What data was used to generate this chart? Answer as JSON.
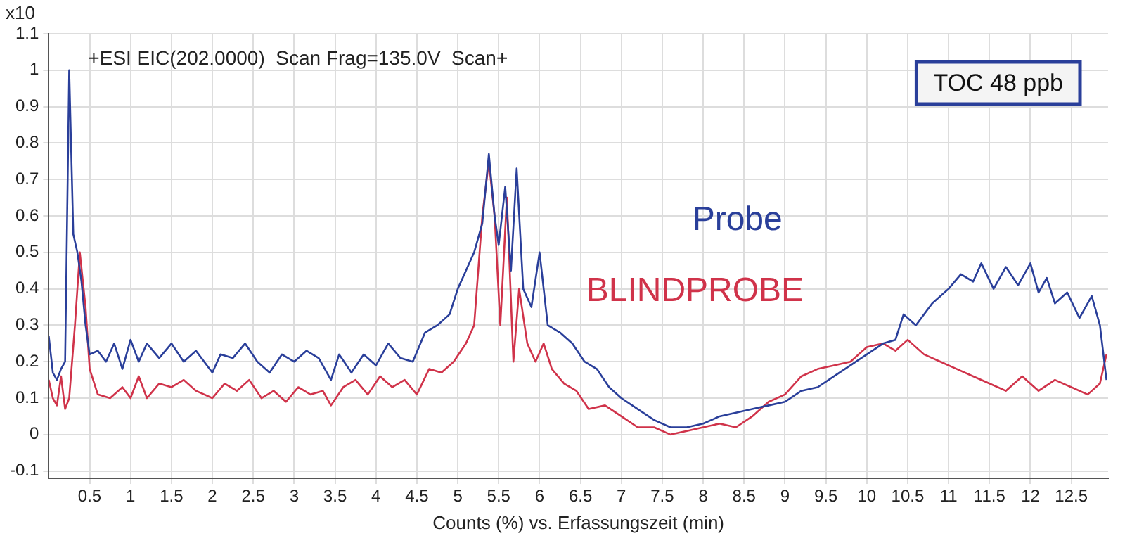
{
  "chart_data": {
    "type": "line",
    "xlabel": "Counts (%) vs. Erfassungszeit (min)",
    "ylabel": "x10",
    "annotations": [
      "+ESI EIC(202.0000)  Scan Frag=135.0V  Scan+",
      "TOC 48 ppb"
    ],
    "xlim": [
      0,
      12.95
    ],
    "ylim": [
      -0.12,
      1.1
    ],
    "xticks": [
      0.5,
      1,
      1.5,
      2,
      2.5,
      3,
      3.5,
      4,
      4.5,
      5,
      5.5,
      6,
      6.5,
      7,
      7.5,
      8,
      8.5,
      9,
      9.5,
      10,
      10.5,
      11,
      11.5,
      12,
      12.5
    ],
    "yticks": [
      -0.1,
      0,
      0.1,
      0.2,
      0.3,
      0.4,
      0.5,
      0.6,
      0.7,
      0.8,
      0.9,
      1,
      1.1
    ],
    "grid": true,
    "legend": false,
    "marker": "none",
    "line_style": "solid",
    "series": [
      {
        "name": "Probe",
        "color": "#2a3f9a",
        "x": [
          0,
          0.05,
          0.1,
          0.15,
          0.2,
          0.25,
          0.3,
          0.35,
          0.4,
          0.45,
          0.5,
          0.6,
          0.7,
          0.8,
          0.9,
          1.0,
          1.1,
          1.2,
          1.35,
          1.5,
          1.65,
          1.8,
          2.0,
          2.1,
          2.25,
          2.4,
          2.55,
          2.7,
          2.85,
          3.0,
          3.15,
          3.3,
          3.45,
          3.55,
          3.7,
          3.85,
          4.0,
          4.15,
          4.3,
          4.45,
          4.6,
          4.75,
          4.9,
          5.0,
          5.1,
          5.2,
          5.3,
          5.38,
          5.45,
          5.5,
          5.58,
          5.65,
          5.72,
          5.8,
          5.9,
          6.0,
          6.1,
          6.25,
          6.4,
          6.55,
          6.7,
          6.85,
          7.0,
          7.2,
          7.4,
          7.6,
          7.8,
          8.0,
          8.2,
          8.4,
          8.6,
          8.8,
          9.0,
          9.2,
          9.4,
          9.6,
          9.8,
          10.0,
          10.2,
          10.35,
          10.45,
          10.6,
          10.8,
          11.0,
          11.15,
          11.3,
          11.4,
          11.55,
          11.7,
          11.85,
          12.0,
          12.1,
          12.2,
          12.3,
          12.45,
          12.6,
          12.75,
          12.85,
          12.93
        ],
        "values": [
          0.27,
          0.17,
          0.15,
          0.18,
          0.2,
          1.0,
          0.55,
          0.5,
          0.42,
          0.3,
          0.22,
          0.23,
          0.2,
          0.25,
          0.18,
          0.26,
          0.2,
          0.25,
          0.21,
          0.25,
          0.2,
          0.23,
          0.17,
          0.22,
          0.21,
          0.25,
          0.2,
          0.17,
          0.22,
          0.2,
          0.23,
          0.21,
          0.15,
          0.22,
          0.17,
          0.22,
          0.19,
          0.25,
          0.21,
          0.2,
          0.28,
          0.3,
          0.33,
          0.4,
          0.45,
          0.5,
          0.58,
          0.77,
          0.6,
          0.52,
          0.68,
          0.45,
          0.73,
          0.4,
          0.35,
          0.5,
          0.3,
          0.28,
          0.25,
          0.2,
          0.18,
          0.13,
          0.1,
          0.07,
          0.04,
          0.02,
          0.02,
          0.03,
          0.05,
          0.06,
          0.07,
          0.08,
          0.09,
          0.12,
          0.13,
          0.16,
          0.19,
          0.22,
          0.25,
          0.26,
          0.33,
          0.3,
          0.36,
          0.4,
          0.44,
          0.42,
          0.47,
          0.4,
          0.46,
          0.41,
          0.47,
          0.39,
          0.43,
          0.36,
          0.39,
          0.32,
          0.38,
          0.3,
          0.15
        ]
      },
      {
        "name": "BLINDPROBE",
        "color": "#d0334a",
        "x": [
          0,
          0.05,
          0.1,
          0.15,
          0.2,
          0.25,
          0.32,
          0.38,
          0.45,
          0.5,
          0.6,
          0.75,
          0.9,
          1.0,
          1.1,
          1.2,
          1.35,
          1.5,
          1.65,
          1.8,
          2.0,
          2.15,
          2.3,
          2.45,
          2.6,
          2.75,
          2.9,
          3.05,
          3.2,
          3.35,
          3.45,
          3.6,
          3.75,
          3.9,
          4.05,
          4.2,
          4.35,
          4.5,
          4.65,
          4.8,
          4.95,
          5.1,
          5.2,
          5.3,
          5.38,
          5.45,
          5.52,
          5.6,
          5.68,
          5.75,
          5.85,
          5.95,
          6.05,
          6.15,
          6.3,
          6.45,
          6.6,
          6.8,
          7.0,
          7.2,
          7.4,
          7.6,
          7.8,
          8.0,
          8.2,
          8.4,
          8.6,
          8.8,
          9.0,
          9.2,
          9.4,
          9.6,
          9.8,
          10.0,
          10.2,
          10.35,
          10.5,
          10.7,
          10.9,
          11.1,
          11.3,
          11.5,
          11.7,
          11.9,
          12.1,
          12.3,
          12.5,
          12.7,
          12.85,
          12.93
        ],
        "values": [
          0.15,
          0.1,
          0.08,
          0.16,
          0.07,
          0.1,
          0.3,
          0.5,
          0.35,
          0.18,
          0.11,
          0.1,
          0.13,
          0.1,
          0.16,
          0.1,
          0.14,
          0.13,
          0.15,
          0.12,
          0.1,
          0.14,
          0.12,
          0.15,
          0.1,
          0.12,
          0.09,
          0.13,
          0.11,
          0.12,
          0.08,
          0.13,
          0.15,
          0.11,
          0.16,
          0.13,
          0.15,
          0.11,
          0.18,
          0.17,
          0.2,
          0.25,
          0.3,
          0.6,
          0.75,
          0.6,
          0.3,
          0.65,
          0.2,
          0.4,
          0.25,
          0.2,
          0.25,
          0.18,
          0.14,
          0.12,
          0.07,
          0.08,
          0.05,
          0.02,
          0.02,
          0.0,
          0.01,
          0.02,
          0.03,
          0.02,
          0.05,
          0.09,
          0.11,
          0.16,
          0.18,
          0.19,
          0.2,
          0.24,
          0.25,
          0.23,
          0.26,
          0.22,
          0.2,
          0.18,
          0.16,
          0.14,
          0.12,
          0.16,
          0.12,
          0.15,
          0.13,
          0.11,
          0.14,
          0.22
        ]
      }
    ]
  }
}
